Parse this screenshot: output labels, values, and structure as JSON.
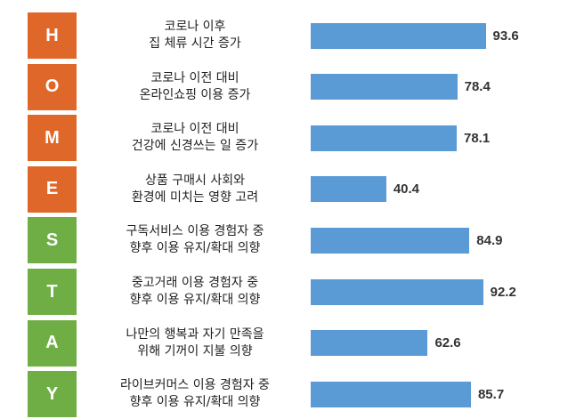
{
  "chart_data": {
    "type": "bar",
    "orientation": "horizontal",
    "xlim": [
      0,
      100
    ],
    "grid": false,
    "bar_color": "#5B9BD5",
    "rows": [
      {
        "letter": "H",
        "letter_color": "#E0672A",
        "label_lines": [
          "코로나 이후",
          "집 체류 시간 증가"
        ],
        "value": 93.6,
        "value_label": "93.6"
      },
      {
        "letter": "O",
        "letter_color": "#E0672A",
        "label_lines": [
          "코로나 이전 대비",
          "온라인쇼핑 이용 증가"
        ],
        "value": 78.4,
        "value_label": "78.4"
      },
      {
        "letter": "M",
        "letter_color": "#E0672A",
        "label_lines": [
          "코로나 이전 대비",
          "건강에 신경쓰는 일 증가"
        ],
        "value": 78.1,
        "value_label": "78.1"
      },
      {
        "letter": "E",
        "letter_color": "#E0672A",
        "label_lines": [
          "상품 구매시 사회와",
          "환경에 미치는 영향 고려"
        ],
        "value": 40.4,
        "value_label": "40.4"
      },
      {
        "letter": "S",
        "letter_color": "#6FAE44",
        "label_lines": [
          "구독서비스 이용 경험자 중",
          "향후 이용 유지/확대 의향"
        ],
        "value": 84.9,
        "value_label": "84.9"
      },
      {
        "letter": "T",
        "letter_color": "#6FAE44",
        "label_lines": [
          "중고거래 이용 경험자 중",
          "향후 이용 유지/확대 의향"
        ],
        "value": 92.2,
        "value_label": "92.2"
      },
      {
        "letter": "A",
        "letter_color": "#6FAE44",
        "label_lines": [
          "나만의 행복과 자기 만족을",
          "위해 기꺼이 지불 의향"
        ],
        "value": 62.6,
        "value_label": "62.6"
      },
      {
        "letter": "Y",
        "letter_color": "#6FAE44",
        "label_lines": [
          "라이브커머스 이용 경험자 중",
          "향후 이용 유지/확대 의향"
        ],
        "value": 85.7,
        "value_label": "85.7"
      }
    ]
  }
}
